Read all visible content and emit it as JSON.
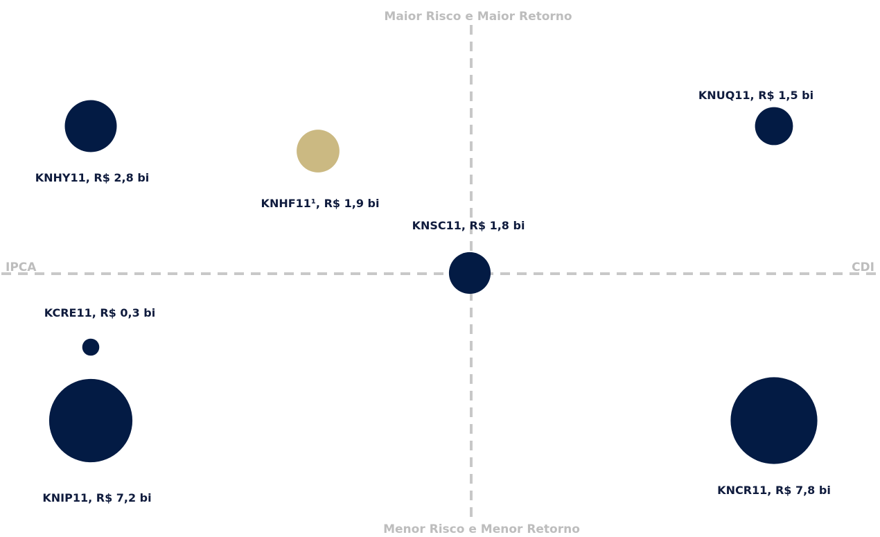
{
  "chart_data": {
    "type": "scatter",
    "title": "",
    "axes": {
      "top": "Maior Risco e Maior Retorno",
      "bottom": "Menor Risco e Menor Retorno",
      "left": "IPCA",
      "right": "CDI"
    },
    "colors": {
      "primary": "#031b44",
      "highlight": "#cbb982",
      "axis": "#c8c8c8"
    },
    "points": [
      {
        "fund": "KNHY11",
        "label": "KNHY11, R$ 2,8 bi",
        "aum_bi": 2.8,
        "color": "primary"
      },
      {
        "fund": "KNHF11",
        "label": "KNHF11¹, R$ 1,9 bi",
        "aum_bi": 1.9,
        "color": "highlight"
      },
      {
        "fund": "KNUQ11",
        "label": "KNUQ11, R$ 1,5 bi",
        "aum_bi": 1.5,
        "color": "primary"
      },
      {
        "fund": "KNSC11",
        "label": "KNSC11, R$ 1,8 bi",
        "aum_bi": 1.8,
        "color": "primary"
      },
      {
        "fund": "KCRE11",
        "label": "KCRE11, R$ 0,3 bi",
        "aum_bi": 0.3,
        "color": "primary"
      },
      {
        "fund": "KNIP11",
        "label": "KNIP11, R$ 7,2 bi",
        "aum_bi": 7.2,
        "color": "primary"
      },
      {
        "fund": "KNCR11",
        "label": "KNCR11, R$ 7,8 bi",
        "aum_bi": 7.8,
        "color": "primary"
      }
    ]
  }
}
